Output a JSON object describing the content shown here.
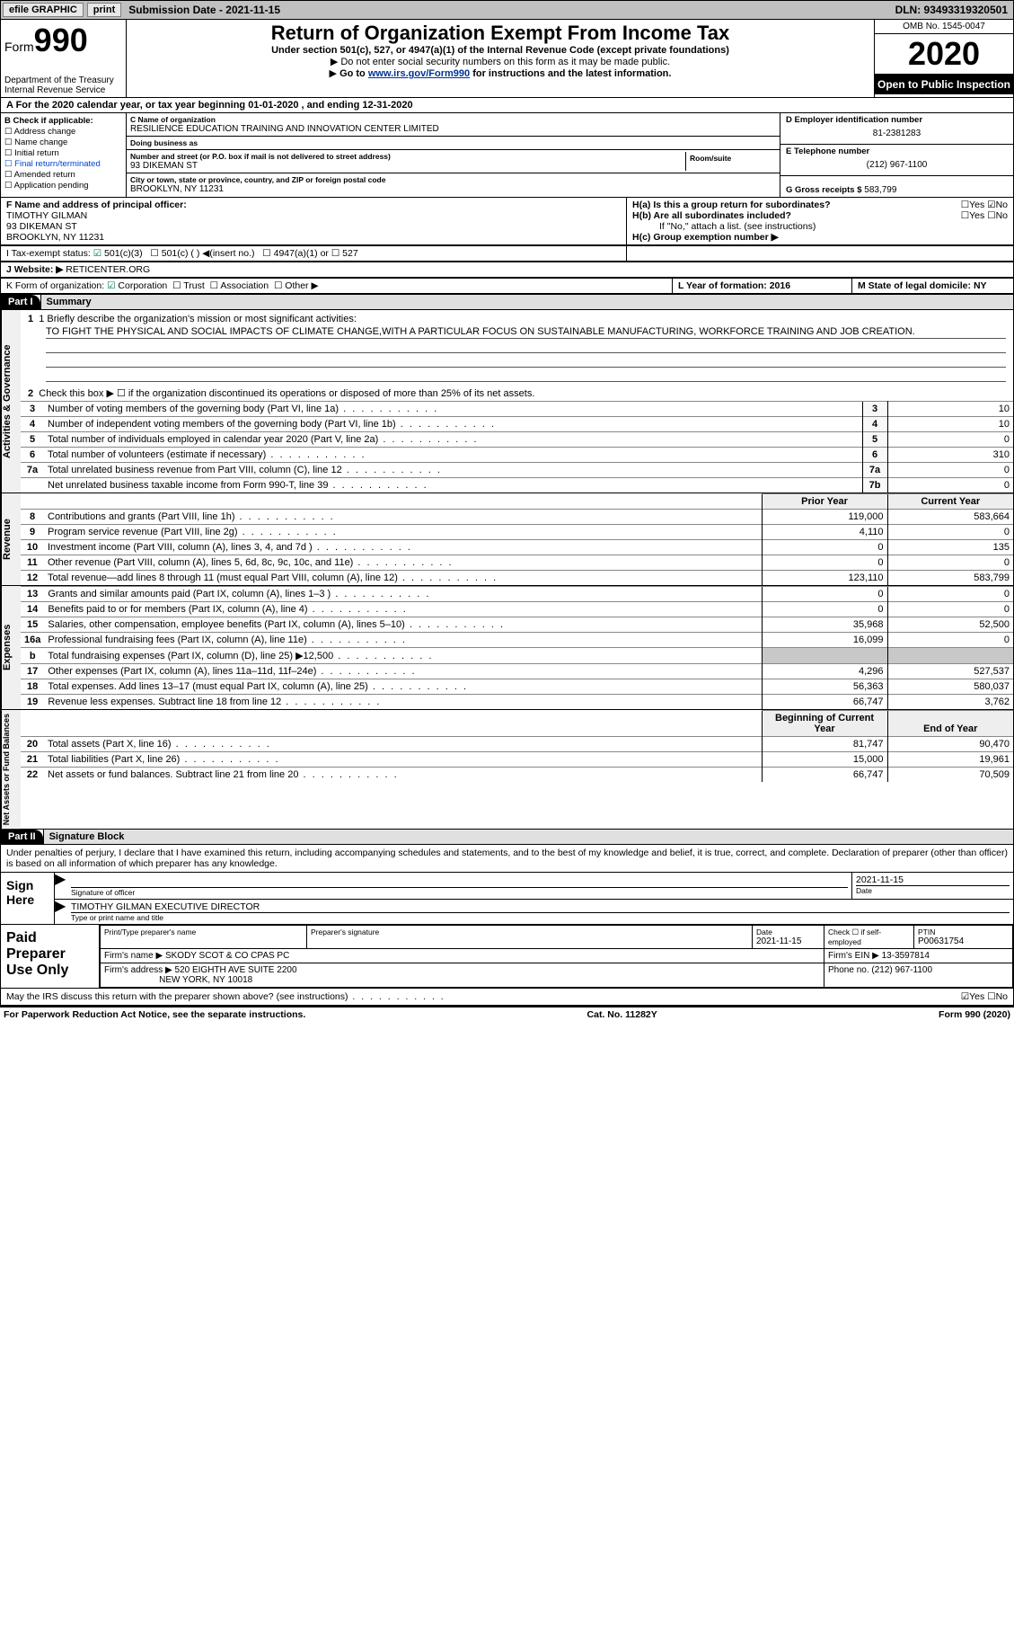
{
  "topbar": {
    "efile": "efile GRAPHIC",
    "print": "print",
    "subdate_label": "Submission Date - 2021-11-15",
    "dln": "DLN: 93493319320501"
  },
  "header": {
    "form_word": "Form",
    "form_num": "990",
    "dept1": "Department of the Treasury",
    "dept2": "Internal Revenue Service",
    "title": "Return of Organization Exempt From Income Tax",
    "subtitle": "Under section 501(c), 527, or 4947(a)(1) of the Internal Revenue Code (except private foundations)",
    "note1": "Do not enter social security numbers on this form as it may be made public.",
    "note2_pre": "Go to ",
    "note2_link": "www.irs.gov/Form990",
    "note2_post": " for instructions and the latest information.",
    "omb": "OMB No. 1545-0047",
    "year": "2020",
    "open": "Open to Public Inspection"
  },
  "row_a": "A For the 2020 calendar year, or tax year beginning 01-01-2020   , and ending 12-31-2020",
  "block_b": {
    "label": "B Check if applicable:",
    "items": [
      "Address change",
      "Name change",
      "Initial return",
      "Final return/terminated",
      "Amended return",
      "Application pending"
    ]
  },
  "block_c": {
    "name_lab": "C Name of organization",
    "name": "RESILIENCE EDUCATION TRAINING AND INNOVATION CENTER LIMITED",
    "dba_lab": "Doing business as",
    "dba": "",
    "addr_lab": "Number and street (or P.O. box if mail is not delivered to street address)",
    "room_lab": "Room/suite",
    "addr": "93 DIKEMAN ST",
    "city_lab": "City or town, state or province, country, and ZIP or foreign postal code",
    "city": "BROOKLYN, NY  11231"
  },
  "block_d": {
    "ein_lab": "D Employer identification number",
    "ein": "81-2381283",
    "tel_lab": "E Telephone number",
    "tel": "(212) 967-1100",
    "gross_lab": "G Gross receipts $",
    "gross": "583,799"
  },
  "block_f": {
    "label": "F Name and address of principal officer:",
    "name": "TIMOTHY GILMAN",
    "addr1": "93 DIKEMAN ST",
    "addr2": "BROOKLYN, NY  11231"
  },
  "block_h": {
    "ha": "H(a)  Is this a group return for subordinates?",
    "ha_ans": "☐Yes ☑No",
    "hb": "H(b)  Are all subordinates included?",
    "hb_ans": "☐Yes ☐No",
    "hb_note": "If \"No,\" attach a list. (see instructions)",
    "hc": "H(c)  Group exemption number ▶"
  },
  "row_i": {
    "label": "I  Tax-exempt status:",
    "o1": "501(c)(3)",
    "o2": "501(c) (  ) ◀(insert no.)",
    "o3": "4947(a)(1) or",
    "o4": "527"
  },
  "row_j": {
    "label": "J  Website: ▶",
    "val": "RETICENTER.ORG"
  },
  "row_k": {
    "label": "K Form of organization:",
    "opts": [
      "Corporation",
      "Trust",
      "Association",
      "Other ▶"
    ]
  },
  "row_lm": {
    "l": "L Year of formation: 2016",
    "m": "M State of legal domicile: NY"
  },
  "part1": {
    "hdr": "Part I",
    "title": "Summary",
    "line1_lab": "1  Briefly describe the organization's mission or most significant activities:",
    "mission": "TO FIGHT THE PHYSICAL AND SOCIAL IMPACTS OF CLIMATE CHANGE,WITH A PARTICULAR FOCUS ON SUSTAINABLE MANUFACTURING, WORKFORCE TRAINING AND JOB CREATION.",
    "line2": "Check this box ▶ ☐  if the organization discontinued its operations or disposed of more than 25% of its net assets.",
    "vlab_gov": "Activities & Governance",
    "vlab_rev": "Revenue",
    "vlab_exp": "Expenses",
    "vlab_na": "Net Assets or Fund Balances",
    "rows_gov": [
      {
        "n": "3",
        "t": "Number of voting members of the governing body (Part VI, line 1a)",
        "b": "3",
        "v": "10"
      },
      {
        "n": "4",
        "t": "Number of independent voting members of the governing body (Part VI, line 1b)",
        "b": "4",
        "v": "10"
      },
      {
        "n": "5",
        "t": "Total number of individuals employed in calendar year 2020 (Part V, line 2a)",
        "b": "5",
        "v": "0"
      },
      {
        "n": "6",
        "t": "Total number of volunteers (estimate if necessary)",
        "b": "6",
        "v": "310"
      },
      {
        "n": "7a",
        "t": "Total unrelated business revenue from Part VIII, column (C), line 12",
        "b": "7a",
        "v": "0"
      },
      {
        "n": "",
        "t": "Net unrelated business taxable income from Form 990-T, line 39",
        "b": "7b",
        "v": "0"
      }
    ],
    "col_prior": "Prior Year",
    "col_curr": "Current Year",
    "rows_rev": [
      {
        "n": "8",
        "t": "Contributions and grants (Part VIII, line 1h)",
        "p": "119,000",
        "c": "583,664"
      },
      {
        "n": "9",
        "t": "Program service revenue (Part VIII, line 2g)",
        "p": "4,110",
        "c": "0"
      },
      {
        "n": "10",
        "t": "Investment income (Part VIII, column (A), lines 3, 4, and 7d )",
        "p": "0",
        "c": "135"
      },
      {
        "n": "11",
        "t": "Other revenue (Part VIII, column (A), lines 5, 6d, 8c, 9c, 10c, and 11e)",
        "p": "0",
        "c": "0"
      },
      {
        "n": "12",
        "t": "Total revenue—add lines 8 through 11 (must equal Part VIII, column (A), line 12)",
        "p": "123,110",
        "c": "583,799"
      }
    ],
    "rows_exp": [
      {
        "n": "13",
        "t": "Grants and similar amounts paid (Part IX, column (A), lines 1–3 )",
        "p": "0",
        "c": "0"
      },
      {
        "n": "14",
        "t": "Benefits paid to or for members (Part IX, column (A), line 4)",
        "p": "0",
        "c": "0"
      },
      {
        "n": "15",
        "t": "Salaries, other compensation, employee benefits (Part IX, column (A), lines 5–10)",
        "p": "35,968",
        "c": "52,500"
      },
      {
        "n": "16a",
        "t": "Professional fundraising fees (Part IX, column (A), line 11e)",
        "p": "16,099",
        "c": "0"
      },
      {
        "n": "b",
        "t": "Total fundraising expenses (Part IX, column (D), line 25) ▶12,500",
        "p": "grey",
        "c": "grey"
      },
      {
        "n": "17",
        "t": "Other expenses (Part IX, column (A), lines 11a–11d, 11f–24e)",
        "p": "4,296",
        "c": "527,537"
      },
      {
        "n": "18",
        "t": "Total expenses. Add lines 13–17 (must equal Part IX, column (A), line 25)",
        "p": "56,363",
        "c": "580,037"
      },
      {
        "n": "19",
        "t": "Revenue less expenses. Subtract line 18 from line 12",
        "p": "66,747",
        "c": "3,762"
      }
    ],
    "col_begin": "Beginning of Current Year",
    "col_end": "End of Year",
    "rows_na": [
      {
        "n": "20",
        "t": "Total assets (Part X, line 16)",
        "p": "81,747",
        "c": "90,470"
      },
      {
        "n": "21",
        "t": "Total liabilities (Part X, line 26)",
        "p": "15,000",
        "c": "19,961"
      },
      {
        "n": "22",
        "t": "Net assets or fund balances. Subtract line 21 from line 20",
        "p": "66,747",
        "c": "70,509"
      }
    ]
  },
  "part2": {
    "hdr": "Part II",
    "title": "Signature Block",
    "decl": "Under penalties of perjury, I declare that I have examined this return, including accompanying schedules and statements, and to the best of my knowledge and belief, it is true, correct, and complete. Declaration of preparer (other than officer) is based on all information of which preparer has any knowledge.",
    "sign_here": "Sign Here",
    "sig_officer_lab": "Signature of officer",
    "sig_date": "2021-11-15",
    "sig_date_lab": "Date",
    "sig_name": "TIMOTHY GILMAN  EXECUTIVE DIRECTOR",
    "sig_name_lab": "Type or print name and title",
    "paid": "Paid Preparer Use Only",
    "prep": {
      "h1": "Print/Type preparer's name",
      "h2": "Preparer's signature",
      "h3": "Date",
      "h3v": "2021-11-15",
      "h4": "Check ☐ if self-employed",
      "h5": "PTIN",
      "h5v": "P00631754",
      "firm_lab": "Firm's name    ▶",
      "firm": "SKODY SCOT & CO CPAS PC",
      "ein_lab": "Firm's EIN ▶",
      "ein": "13-3597814",
      "addr_lab": "Firm's address ▶",
      "addr1": "520 EIGHTH AVE SUITE 2200",
      "addr2": "NEW YORK, NY  10018",
      "phone_lab": "Phone no.",
      "phone": "(212) 967-1100"
    },
    "discuss": "May the IRS discuss this return with the preparer shown above? (see instructions)",
    "discuss_ans": "☑Yes  ☐No"
  },
  "footer": {
    "l": "For Paperwork Reduction Act Notice, see the separate instructions.",
    "c": "Cat. No. 11282Y",
    "r": "Form 990 (2020)"
  }
}
